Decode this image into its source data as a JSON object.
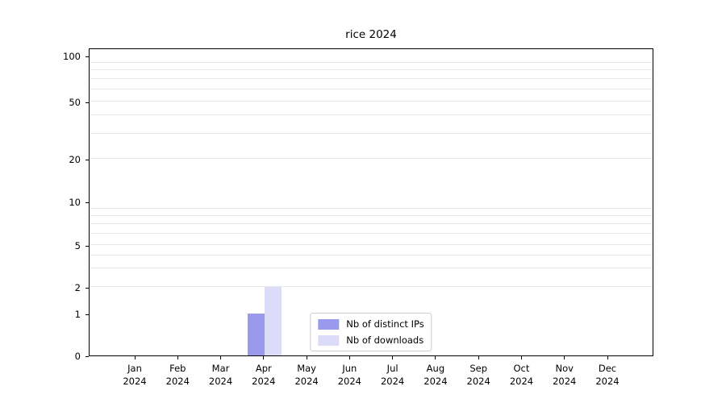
{
  "chart_data": {
    "type": "bar",
    "title": "rice 2024",
    "categories": [
      "Jan 2024",
      "Feb 2024",
      "Mar 2024",
      "Apr 2024",
      "May 2024",
      "Jun 2024",
      "Jul 2024",
      "Aug 2024",
      "Sep 2024",
      "Oct 2024",
      "Nov 2024",
      "Dec 2024"
    ],
    "series": [
      {
        "name": "Nb of distinct IPs",
        "color": "#9999ee",
        "values": [
          0,
          0,
          0,
          1,
          0,
          0,
          0,
          0,
          0,
          0,
          0,
          0
        ]
      },
      {
        "name": "Nb of downloads",
        "color": "#dcdcf8",
        "values": [
          0,
          0,
          0,
          2,
          0,
          0,
          0,
          0,
          0,
          0,
          0,
          0
        ]
      }
    ],
    "yscale": "symlog",
    "yticks": [
      0,
      1,
      2,
      5,
      10,
      20,
      50,
      100
    ],
    "ylim": [
      0,
      100
    ],
    "grid": "horizontal-minor",
    "legend_position": "lower-center"
  }
}
